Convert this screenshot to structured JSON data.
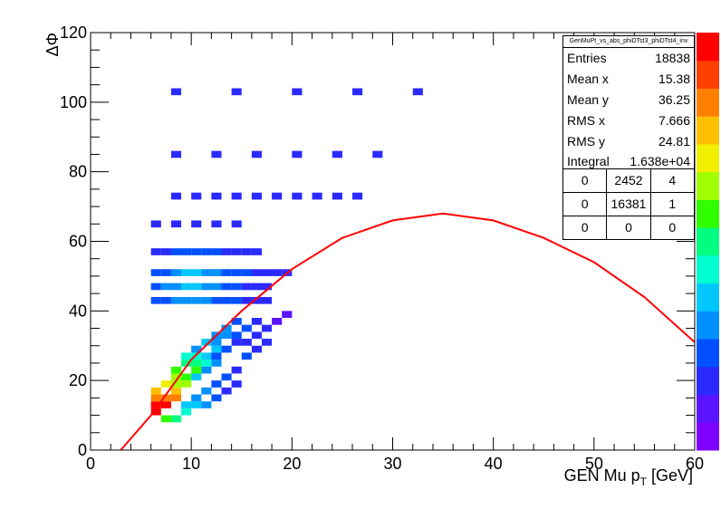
{
  "chart_data": {
    "type": "heatmap",
    "title": "",
    "xlabel": "GEN Mu p_T [GeV]",
    "ylabel": "ΔΦ",
    "xlim": [
      0,
      60
    ],
    "ylim": [
      0,
      120
    ],
    "x_ticks": [
      "0",
      "10",
      "20",
      "30",
      "40",
      "50",
      "60"
    ],
    "y_ticks": [
      "0",
      "20",
      "40",
      "60",
      "80",
      "100",
      "120"
    ],
    "grid": false,
    "colorbar": {
      "position": "right",
      "palette": [
        "#7f00ff",
        "#5a14ff",
        "#2a2aff",
        "#0050ff",
        "#0090ff",
        "#00c8ff",
        "#00ffd0",
        "#00ff80",
        "#30ff00",
        "#a0ff00",
        "#f0f000",
        "#ffc000",
        "#ff8000",
        "#ff4000",
        "#ff0000"
      ]
    },
    "cells": [
      [
        6,
        12,
        15
      ],
      [
        6,
        10,
        14
      ],
      [
        7,
        12,
        14
      ],
      [
        6,
        14,
        12
      ],
      [
        7,
        14,
        12
      ],
      [
        8,
        14,
        12
      ],
      [
        6,
        16,
        11
      ],
      [
        8,
        16,
        11
      ],
      [
        7,
        18,
        10
      ],
      [
        8,
        18,
        9
      ],
      [
        9,
        18,
        9
      ],
      [
        8,
        20,
        9
      ],
      [
        9,
        20,
        8
      ],
      [
        8,
        22,
        8
      ],
      [
        10,
        22,
        8
      ],
      [
        9,
        24,
        7
      ],
      [
        10,
        24,
        7
      ],
      [
        11,
        24,
        6
      ],
      [
        9,
        26,
        6
      ],
      [
        10,
        26,
        6
      ],
      [
        11,
        26,
        5
      ],
      [
        12,
        28,
        5
      ],
      [
        11,
        30,
        5
      ],
      [
        12,
        30,
        4
      ],
      [
        13,
        32,
        4
      ],
      [
        14,
        32,
        3
      ],
      [
        13,
        34,
        4
      ],
      [
        15,
        34,
        3
      ],
      [
        14,
        36,
        3
      ],
      [
        16,
        36,
        2
      ],
      [
        12,
        32,
        4
      ],
      [
        10,
        20,
        5
      ],
      [
        11,
        22,
        4
      ],
      [
        12,
        24,
        4
      ],
      [
        10,
        28,
        4
      ],
      [
        12,
        26,
        3
      ],
      [
        13,
        28,
        3
      ],
      [
        14,
        30,
        2
      ],
      [
        11,
        16,
        4
      ],
      [
        12,
        18,
        3
      ],
      [
        13,
        20,
        3
      ],
      [
        14,
        22,
        2
      ],
      [
        7,
        8,
        8
      ],
      [
        8,
        8,
        7
      ],
      [
        9,
        10,
        6
      ],
      [
        10,
        12,
        5
      ],
      [
        11,
        12,
        4
      ],
      [
        12,
        14,
        3
      ],
      [
        9,
        12,
        5
      ],
      [
        10,
        14,
        4
      ],
      [
        13,
        16,
        2
      ],
      [
        14,
        18,
        2
      ],
      [
        15,
        26,
        3
      ],
      [
        16,
        28,
        2
      ],
      [
        17,
        30,
        2
      ],
      [
        15,
        30,
        2
      ],
      [
        17,
        34,
        2
      ],
      [
        18,
        36,
        1
      ],
      [
        16,
        32,
        2
      ],
      [
        19,
        38,
        1
      ],
      [
        6,
        50,
        3
      ],
      [
        7,
        50,
        3
      ],
      [
        8,
        50,
        4
      ],
      [
        9,
        50,
        5
      ],
      [
        10,
        50,
        5
      ],
      [
        11,
        50,
        4
      ],
      [
        12,
        50,
        4
      ],
      [
        13,
        50,
        3
      ],
      [
        14,
        50,
        3
      ],
      [
        15,
        50,
        3
      ],
      [
        16,
        50,
        2
      ],
      [
        17,
        50,
        2
      ],
      [
        18,
        50,
        2
      ],
      [
        19,
        50,
        2
      ],
      [
        6,
        46,
        3
      ],
      [
        7,
        46,
        4
      ],
      [
        8,
        46,
        4
      ],
      [
        9,
        46,
        5
      ],
      [
        10,
        46,
        5
      ],
      [
        11,
        46,
        4
      ],
      [
        12,
        46,
        4
      ],
      [
        13,
        46,
        3
      ],
      [
        14,
        46,
        3
      ],
      [
        15,
        46,
        2
      ],
      [
        16,
        46,
        2
      ],
      [
        17,
        46,
        2
      ],
      [
        6,
        42,
        3
      ],
      [
        7,
        42,
        3
      ],
      [
        8,
        42,
        4
      ],
      [
        9,
        42,
        4
      ],
      [
        10,
        42,
        4
      ],
      [
        11,
        42,
        4
      ],
      [
        12,
        42,
        3
      ],
      [
        13,
        42,
        3
      ],
      [
        14,
        42,
        3
      ],
      [
        15,
        42,
        2
      ],
      [
        16,
        42,
        2
      ],
      [
        17,
        42,
        2
      ],
      [
        6,
        56,
        2
      ],
      [
        7,
        56,
        2
      ],
      [
        8,
        56,
        3
      ],
      [
        9,
        56,
        3
      ],
      [
        10,
        56,
        3
      ],
      [
        11,
        56,
        3
      ],
      [
        12,
        56,
        3
      ],
      [
        13,
        56,
        2
      ],
      [
        14,
        56,
        2
      ],
      [
        15,
        56,
        2
      ],
      [
        16,
        56,
        2
      ],
      [
        6,
        64,
        2
      ],
      [
        8,
        64,
        2
      ],
      [
        10,
        64,
        2
      ],
      [
        12,
        64,
        2
      ],
      [
        14,
        64,
        2
      ],
      [
        8,
        72,
        2
      ],
      [
        10,
        72,
        2
      ],
      [
        12,
        72,
        2
      ],
      [
        14,
        72,
        2
      ],
      [
        16,
        72,
        2
      ],
      [
        18,
        72,
        2
      ],
      [
        20,
        72,
        2
      ],
      [
        22,
        72,
        2
      ],
      [
        24,
        72,
        2
      ],
      [
        26,
        72,
        2
      ],
      [
        8,
        84,
        2
      ],
      [
        12,
        84,
        2
      ],
      [
        16,
        84,
        2
      ],
      [
        20,
        84,
        2
      ],
      [
        24,
        84,
        2
      ],
      [
        28,
        84,
        2
      ],
      [
        8,
        102,
        2
      ],
      [
        14,
        102,
        2
      ],
      [
        20,
        102,
        2
      ],
      [
        26,
        102,
        2
      ],
      [
        32,
        102,
        2
      ]
    ],
    "fit_curve": {
      "name": "",
      "color": "#ff0000",
      "points": [
        [
          3,
          0
        ],
        [
          6,
          10
        ],
        [
          10,
          26
        ],
        [
          15,
          40
        ],
        [
          20,
          52
        ],
        [
          25,
          61
        ],
        [
          30,
          66
        ],
        [
          35,
          68
        ],
        [
          40,
          66
        ],
        [
          45,
          61
        ],
        [
          50,
          54
        ],
        [
          55,
          44
        ],
        [
          60,
          31
        ]
      ]
    },
    "stats": {
      "title": "GenMuPt_vs_abs_phiDTst3_phiDTst4_inv",
      "rows": [
        {
          "label": "Entries",
          "value": "18838"
        },
        {
          "label": "Mean x",
          "value": "15.38"
        },
        {
          "label": "Mean y",
          "value": "36.25"
        },
        {
          "label": "RMS x",
          "value": "7.666"
        },
        {
          "label": "RMS y",
          "value": "24.81"
        },
        {
          "label": "Integral",
          "value": "1.638e+04"
        }
      ],
      "quadrants": [
        [
          "0",
          "2452",
          "4"
        ],
        [
          "0",
          "16381",
          "1"
        ],
        [
          "0",
          "0",
          "0"
        ]
      ]
    }
  }
}
